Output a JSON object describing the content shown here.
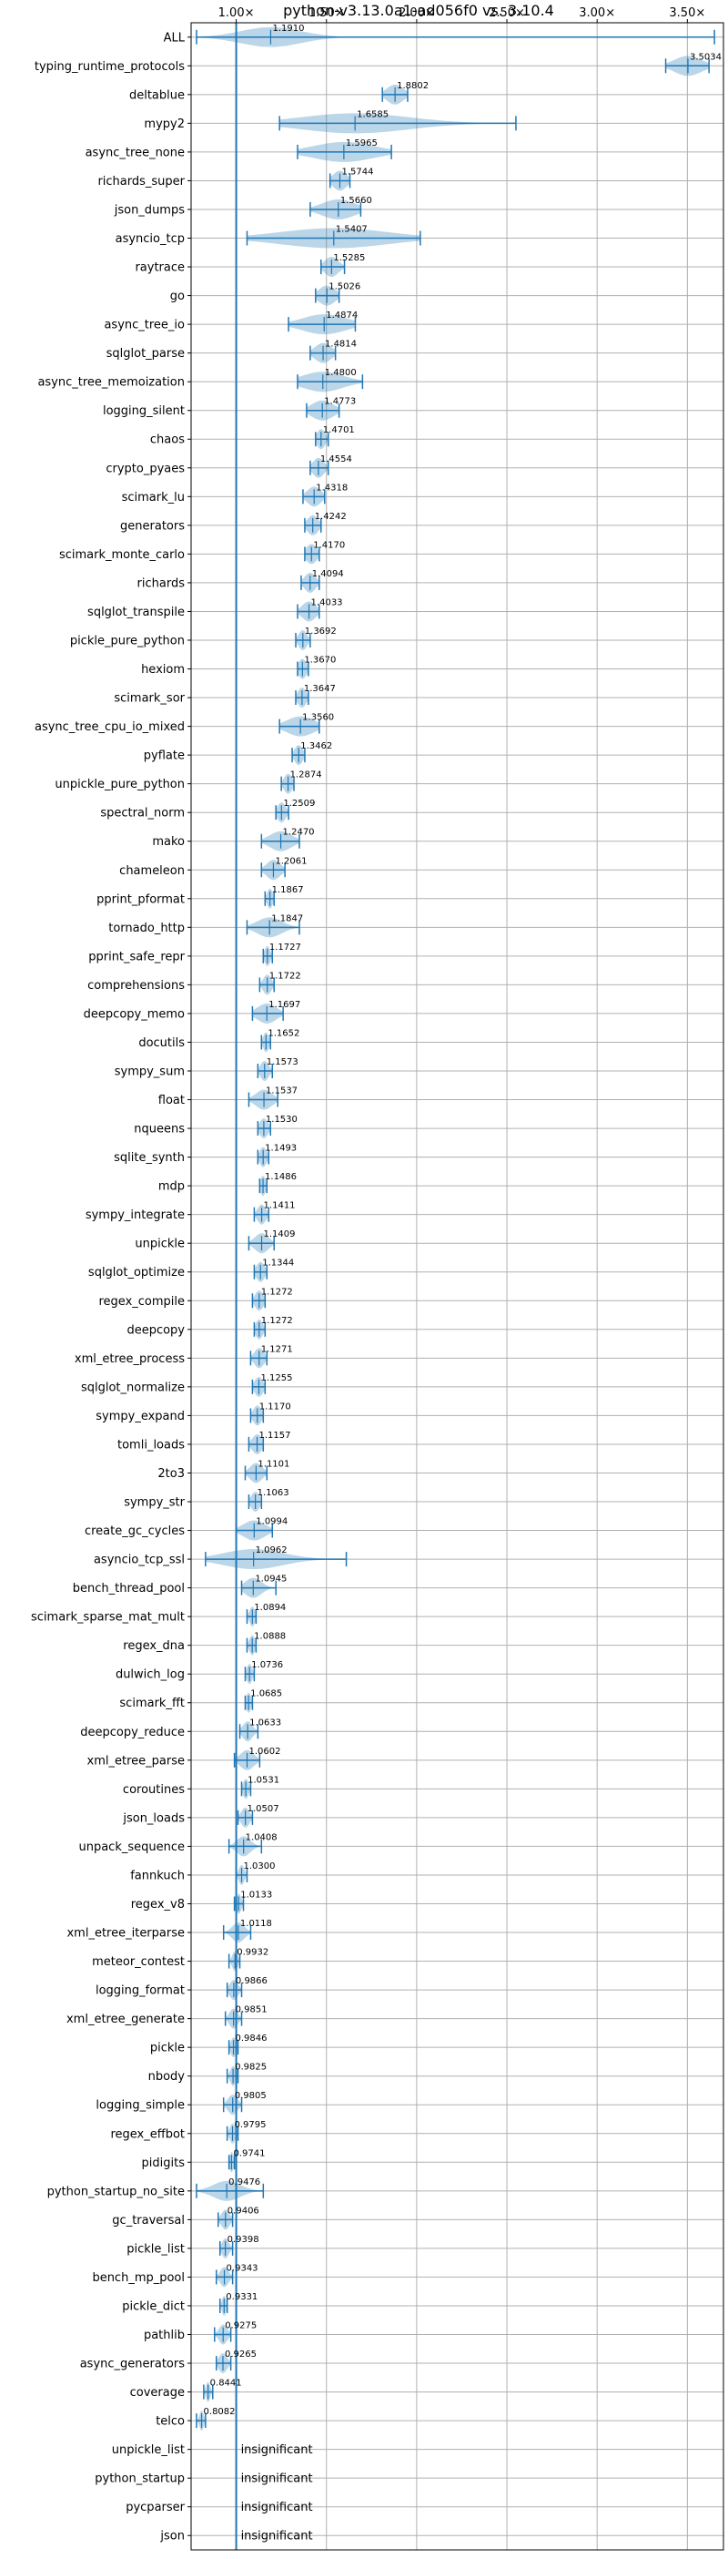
{
  "chart_data": {
    "type": "violin",
    "title": "python-v3.13.0a1-ad056f0 vs. 3.10.4",
    "x_tick_labels": [
      "1.00×",
      "1.50×",
      "2.00×",
      "2.50×",
      "3.00×",
      "3.50×"
    ],
    "x_ticks": [
      1.0,
      1.5,
      2.0,
      2.5,
      3.0,
      3.5
    ],
    "xlim": [
      0.75,
      3.7
    ],
    "grid": true,
    "reference_line": 1.0,
    "insignificant_label": "insignificant",
    "benchmarks": [
      {
        "name": "ALL",
        "value": 1.191,
        "label": "1.1910",
        "min": 0.78,
        "max": 3.65,
        "spread": 0.22
      },
      {
        "name": "typing_runtime_protocols",
        "value": 3.5034,
        "label": "3.5034",
        "min": 3.38,
        "max": 3.62,
        "spread": 0.1
      },
      {
        "name": "deltablue",
        "value": 1.8802,
        "label": "1.8802",
        "min": 1.81,
        "max": 1.95,
        "spread": 0.06
      },
      {
        "name": "mypy2",
        "value": 1.6585,
        "label": "1.6585",
        "min": 1.24,
        "max": 2.55,
        "spread": 0.4
      },
      {
        "name": "async_tree_none",
        "value": 1.5965,
        "label": "1.5965",
        "min": 1.34,
        "max": 1.86,
        "spread": 0.22
      },
      {
        "name": "richards_super",
        "value": 1.5744,
        "label": "1.5744",
        "min": 1.52,
        "max": 1.63,
        "spread": 0.05
      },
      {
        "name": "json_dumps",
        "value": 1.566,
        "label": "1.5660",
        "min": 1.41,
        "max": 1.69,
        "spread": 0.12
      },
      {
        "name": "asyncio_tcp",
        "value": 1.5407,
        "label": "1.5407",
        "min": 1.06,
        "max": 2.02,
        "spread": 0.4
      },
      {
        "name": "raytrace",
        "value": 1.5285,
        "label": "1.5285",
        "min": 1.47,
        "max": 1.6,
        "spread": 0.05
      },
      {
        "name": "go",
        "value": 1.5026,
        "label": "1.5026",
        "min": 1.44,
        "max": 1.57,
        "spread": 0.06
      },
      {
        "name": "async_tree_io",
        "value": 1.4874,
        "label": "1.4874",
        "min": 1.29,
        "max": 1.66,
        "spread": 0.16
      },
      {
        "name": "sqlglot_parse",
        "value": 1.4814,
        "label": "1.4814",
        "min": 1.41,
        "max": 1.55,
        "spread": 0.06
      },
      {
        "name": "async_tree_memoization",
        "value": 1.48,
        "label": "1.4800",
        "min": 1.34,
        "max": 1.7,
        "spread": 0.15
      },
      {
        "name": "logging_silent",
        "value": 1.4773,
        "label": "1.4773",
        "min": 1.39,
        "max": 1.57,
        "spread": 0.08
      },
      {
        "name": "chaos",
        "value": 1.4701,
        "label": "1.4701",
        "min": 1.44,
        "max": 1.51,
        "spread": 0.03
      },
      {
        "name": "crypto_pyaes",
        "value": 1.4554,
        "label": "1.4554",
        "min": 1.41,
        "max": 1.51,
        "spread": 0.04
      },
      {
        "name": "scimark_lu",
        "value": 1.4318,
        "label": "1.4318",
        "min": 1.37,
        "max": 1.49,
        "spread": 0.05
      },
      {
        "name": "generators",
        "value": 1.4242,
        "label": "1.4242",
        "min": 1.38,
        "max": 1.47,
        "spread": 0.04
      },
      {
        "name": "scimark_monte_carlo",
        "value": 1.417,
        "label": "1.4170",
        "min": 1.38,
        "max": 1.46,
        "spread": 0.04
      },
      {
        "name": "richards",
        "value": 1.4094,
        "label": "1.4094",
        "min": 1.36,
        "max": 1.46,
        "spread": 0.04
      },
      {
        "name": "sqlglot_transpile",
        "value": 1.4033,
        "label": "1.4033",
        "min": 1.34,
        "max": 1.46,
        "spread": 0.05
      },
      {
        "name": "pickle_pure_python",
        "value": 1.3692,
        "label": "1.3692",
        "min": 1.33,
        "max": 1.41,
        "spread": 0.03
      },
      {
        "name": "hexiom",
        "value": 1.367,
        "label": "1.3670",
        "min": 1.34,
        "max": 1.4,
        "spread": 0.03
      },
      {
        "name": "scimark_sor",
        "value": 1.3647,
        "label": "1.3647",
        "min": 1.33,
        "max": 1.4,
        "spread": 0.03
      },
      {
        "name": "async_tree_cpu_io_mixed",
        "value": 1.356,
        "label": "1.3560",
        "min": 1.24,
        "max": 1.46,
        "spread": 0.1
      },
      {
        "name": "pyflate",
        "value": 1.3462,
        "label": "1.3462",
        "min": 1.31,
        "max": 1.38,
        "spread": 0.03
      },
      {
        "name": "unpickle_pure_python",
        "value": 1.2874,
        "label": "1.2874",
        "min": 1.25,
        "max": 1.32,
        "spread": 0.03
      },
      {
        "name": "spectral_norm",
        "value": 1.2509,
        "label": "1.2509",
        "min": 1.22,
        "max": 1.29,
        "spread": 0.03
      },
      {
        "name": "mako",
        "value": 1.247,
        "label": "1.2470",
        "min": 1.14,
        "max": 1.35,
        "spread": 0.08
      },
      {
        "name": "chameleon",
        "value": 1.2061,
        "label": "1.2061",
        "min": 1.14,
        "max": 1.27,
        "spread": 0.05
      },
      {
        "name": "pprint_pformat",
        "value": 1.1867,
        "label": "1.1867",
        "min": 1.16,
        "max": 1.21,
        "spread": 0.02
      },
      {
        "name": "tornado_http",
        "value": 1.1847,
        "label": "1.1847",
        "min": 1.06,
        "max": 1.35,
        "spread": 0.09
      },
      {
        "name": "pprint_safe_repr",
        "value": 1.1727,
        "label": "1.1727",
        "min": 1.15,
        "max": 1.2,
        "spread": 0.02
      },
      {
        "name": "comprehensions",
        "value": 1.1722,
        "label": "1.1722",
        "min": 1.13,
        "max": 1.21,
        "spread": 0.03
      },
      {
        "name": "deepcopy_memo",
        "value": 1.1697,
        "label": "1.1697",
        "min": 1.09,
        "max": 1.26,
        "spread": 0.07
      },
      {
        "name": "docutils",
        "value": 1.1652,
        "label": "1.1652",
        "min": 1.14,
        "max": 1.19,
        "spread": 0.02
      },
      {
        "name": "sympy_sum",
        "value": 1.1573,
        "label": "1.1573",
        "min": 1.12,
        "max": 1.2,
        "spread": 0.03
      },
      {
        "name": "float",
        "value": 1.1537,
        "label": "1.1537",
        "min": 1.07,
        "max": 1.23,
        "spread": 0.06
      },
      {
        "name": "nqueens",
        "value": 1.153,
        "label": "1.1530",
        "min": 1.12,
        "max": 1.19,
        "spread": 0.03
      },
      {
        "name": "sqlite_synth",
        "value": 1.1493,
        "label": "1.1493",
        "min": 1.12,
        "max": 1.18,
        "spread": 0.025
      },
      {
        "name": "mdp",
        "value": 1.1486,
        "label": "1.1486",
        "min": 1.13,
        "max": 1.17,
        "spread": 0.02
      },
      {
        "name": "sympy_integrate",
        "value": 1.1411,
        "label": "1.1411",
        "min": 1.1,
        "max": 1.18,
        "spread": 0.03
      },
      {
        "name": "unpickle",
        "value": 1.1409,
        "label": "1.1409",
        "min": 1.07,
        "max": 1.21,
        "spread": 0.05
      },
      {
        "name": "sqlglot_optimize",
        "value": 1.1344,
        "label": "1.1344",
        "min": 1.1,
        "max": 1.17,
        "spread": 0.03
      },
      {
        "name": "regex_compile",
        "value": 1.1272,
        "label": "1.1272",
        "min": 1.09,
        "max": 1.16,
        "spread": 0.03
      },
      {
        "name": "deepcopy",
        "value": 1.1272,
        "label": "1.1272",
        "min": 1.1,
        "max": 1.16,
        "spread": 0.025
      },
      {
        "name": "xml_etree_process",
        "value": 1.1271,
        "label": "1.1271",
        "min": 1.08,
        "max": 1.17,
        "spread": 0.035
      },
      {
        "name": "sqlglot_normalize",
        "value": 1.1255,
        "label": "1.1255",
        "min": 1.09,
        "max": 1.16,
        "spread": 0.03
      },
      {
        "name": "sympy_expand",
        "value": 1.117,
        "label": "1.1170",
        "min": 1.08,
        "max": 1.15,
        "spread": 0.03
      },
      {
        "name": "tomli_loads",
        "value": 1.1157,
        "label": "1.1157",
        "min": 1.07,
        "max": 1.15,
        "spread": 0.035
      },
      {
        "name": "2to3",
        "value": 1.1101,
        "label": "1.1101",
        "min": 1.05,
        "max": 1.17,
        "spread": 0.045
      },
      {
        "name": "sympy_str",
        "value": 1.1063,
        "label": "1.1063",
        "min": 1.07,
        "max": 1.14,
        "spread": 0.03
      },
      {
        "name": "create_gc_cycles",
        "value": 1.0994,
        "label": "1.0994",
        "min": 1.0,
        "max": 1.2,
        "spread": 0.08
      },
      {
        "name": "asyncio_tcp_ssl",
        "value": 1.0962,
        "label": "1.0962",
        "min": 0.83,
        "max": 1.61,
        "spread": 0.22
      },
      {
        "name": "bench_thread_pool",
        "value": 1.0945,
        "label": "1.0945",
        "min": 1.03,
        "max": 1.22,
        "spread": 0.06
      },
      {
        "name": "scimark_sparse_mat_mult",
        "value": 1.0894,
        "label": "1.0894",
        "min": 1.06,
        "max": 1.11,
        "spread": 0.02
      },
      {
        "name": "regex_dna",
        "value": 1.0888,
        "label": "1.0888",
        "min": 1.06,
        "max": 1.11,
        "spread": 0.02
      },
      {
        "name": "dulwich_log",
        "value": 1.0736,
        "label": "1.0736",
        "min": 1.05,
        "max": 1.1,
        "spread": 0.02
      },
      {
        "name": "scimark_fft",
        "value": 1.0685,
        "label": "1.0685",
        "min": 1.05,
        "max": 1.09,
        "spread": 0.018
      },
      {
        "name": "deepcopy_reduce",
        "value": 1.0633,
        "label": "1.0633",
        "min": 1.02,
        "max": 1.12,
        "spread": 0.035
      },
      {
        "name": "xml_etree_parse",
        "value": 1.0602,
        "label": "1.0602",
        "min": 0.99,
        "max": 1.13,
        "spread": 0.05
      },
      {
        "name": "coroutines",
        "value": 1.0531,
        "label": "1.0531",
        "min": 1.03,
        "max": 1.08,
        "spread": 0.02
      },
      {
        "name": "json_loads",
        "value": 1.0507,
        "label": "1.0507",
        "min": 1.01,
        "max": 1.09,
        "spread": 0.03
      },
      {
        "name": "unpack_sequence",
        "value": 1.0408,
        "label": "1.0408",
        "min": 0.96,
        "max": 1.14,
        "spread": 0.05
      },
      {
        "name": "fannkuch",
        "value": 1.03,
        "label": "1.0300",
        "min": 1.0,
        "max": 1.06,
        "spread": 0.02
      },
      {
        "name": "regex_v8",
        "value": 1.0133,
        "label": "1.0133",
        "min": 0.99,
        "max": 1.04,
        "spread": 0.02
      },
      {
        "name": "xml_etree_iterparse",
        "value": 1.0118,
        "label": "1.0118",
        "min": 0.93,
        "max": 1.08,
        "spread": 0.045
      },
      {
        "name": "meteor_contest",
        "value": 0.9932,
        "label": "0.9932",
        "min": 0.96,
        "max": 1.02,
        "spread": 0.02
      },
      {
        "name": "logging_format",
        "value": 0.9866,
        "label": "0.9866",
        "min": 0.95,
        "max": 1.03,
        "spread": 0.03
      },
      {
        "name": "xml_etree_generate",
        "value": 0.9851,
        "label": "0.9851",
        "min": 0.94,
        "max": 1.03,
        "spread": 0.03
      },
      {
        "name": "pickle",
        "value": 0.9846,
        "label": "0.9846",
        "min": 0.96,
        "max": 1.01,
        "spread": 0.02
      },
      {
        "name": "nbody",
        "value": 0.9825,
        "label": "0.9825",
        "min": 0.95,
        "max": 1.01,
        "spread": 0.02
      },
      {
        "name": "logging_simple",
        "value": 0.9805,
        "label": "0.9805",
        "min": 0.93,
        "max": 1.03,
        "spread": 0.035
      },
      {
        "name": "regex_effbot",
        "value": 0.9795,
        "label": "0.9795",
        "min": 0.95,
        "max": 1.01,
        "spread": 0.02
      },
      {
        "name": "pidigits",
        "value": 0.9741,
        "label": "0.9741",
        "min": 0.96,
        "max": 0.99,
        "spread": 0.015
      },
      {
        "name": "python_startup_no_site",
        "value": 0.9476,
        "label": "0.9476",
        "min": 0.78,
        "max": 1.15,
        "spread": 0.1
      },
      {
        "name": "gc_traversal",
        "value": 0.9406,
        "label": "0.9406",
        "min": 0.9,
        "max": 0.98,
        "spread": 0.03
      },
      {
        "name": "pickle_list",
        "value": 0.9398,
        "label": "0.9398",
        "min": 0.91,
        "max": 0.98,
        "spread": 0.025
      },
      {
        "name": "bench_mp_pool",
        "value": 0.9343,
        "label": "0.9343",
        "min": 0.89,
        "max": 0.98,
        "spread": 0.03
      },
      {
        "name": "pickle_dict",
        "value": 0.9331,
        "label": "0.9331",
        "min": 0.91,
        "max": 0.95,
        "spread": 0.015
      },
      {
        "name": "pathlib",
        "value": 0.9275,
        "label": "0.9275",
        "min": 0.88,
        "max": 0.97,
        "spread": 0.03
      },
      {
        "name": "async_generators",
        "value": 0.9265,
        "label": "0.9265",
        "min": 0.89,
        "max": 0.97,
        "spread": 0.03
      },
      {
        "name": "coverage",
        "value": 0.8441,
        "label": "0.8441",
        "min": 0.82,
        "max": 0.87,
        "spread": 0.015
      },
      {
        "name": "telco",
        "value": 0.8082,
        "label": "0.8082",
        "min": 0.78,
        "max": 0.83,
        "spread": 0.015
      },
      {
        "name": "unpickle_list",
        "insignificant": true
      },
      {
        "name": "python_startup",
        "insignificant": true
      },
      {
        "name": "pycparser",
        "insignificant": true
      },
      {
        "name": "json",
        "insignificant": true
      }
    ]
  }
}
